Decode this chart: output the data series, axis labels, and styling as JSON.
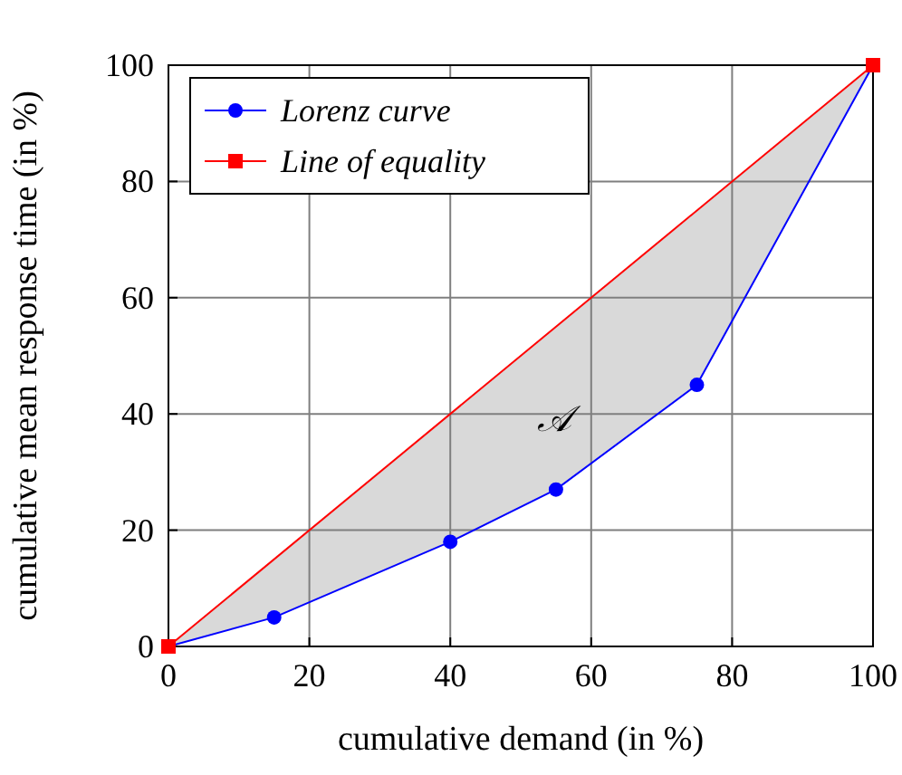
{
  "chart_data": {
    "type": "line",
    "xlabel": "cumulative demand (in %)",
    "ylabel": "cumulative mean response time (in %)",
    "xlim": [
      0,
      100
    ],
    "ylim": [
      0,
      100
    ],
    "xticks": [
      0,
      20,
      40,
      60,
      80,
      100
    ],
    "yticks": [
      0,
      20,
      40,
      60,
      80,
      100
    ],
    "grid": true,
    "legend": "top left",
    "series": [
      {
        "name": "Lorenz curve",
        "color": "#0000ff",
        "marker": "circle",
        "x": [
          0,
          15,
          40,
          55,
          75,
          100
        ],
        "values": [
          0,
          5,
          18,
          27,
          45,
          100
        ],
        "lower": [
          0,
          5,
          18,
          27,
          45,
          100
        ],
        "upper": [
          0,
          15,
          40,
          55,
          75,
          100
        ]
      },
      {
        "name": "Line of equality",
        "color": "#ff0000",
        "marker": "square",
        "x": [
          0,
          100
        ],
        "values": [
          0,
          100
        ]
      }
    ],
    "annotations": [
      "𝒜"
    ]
  }
}
